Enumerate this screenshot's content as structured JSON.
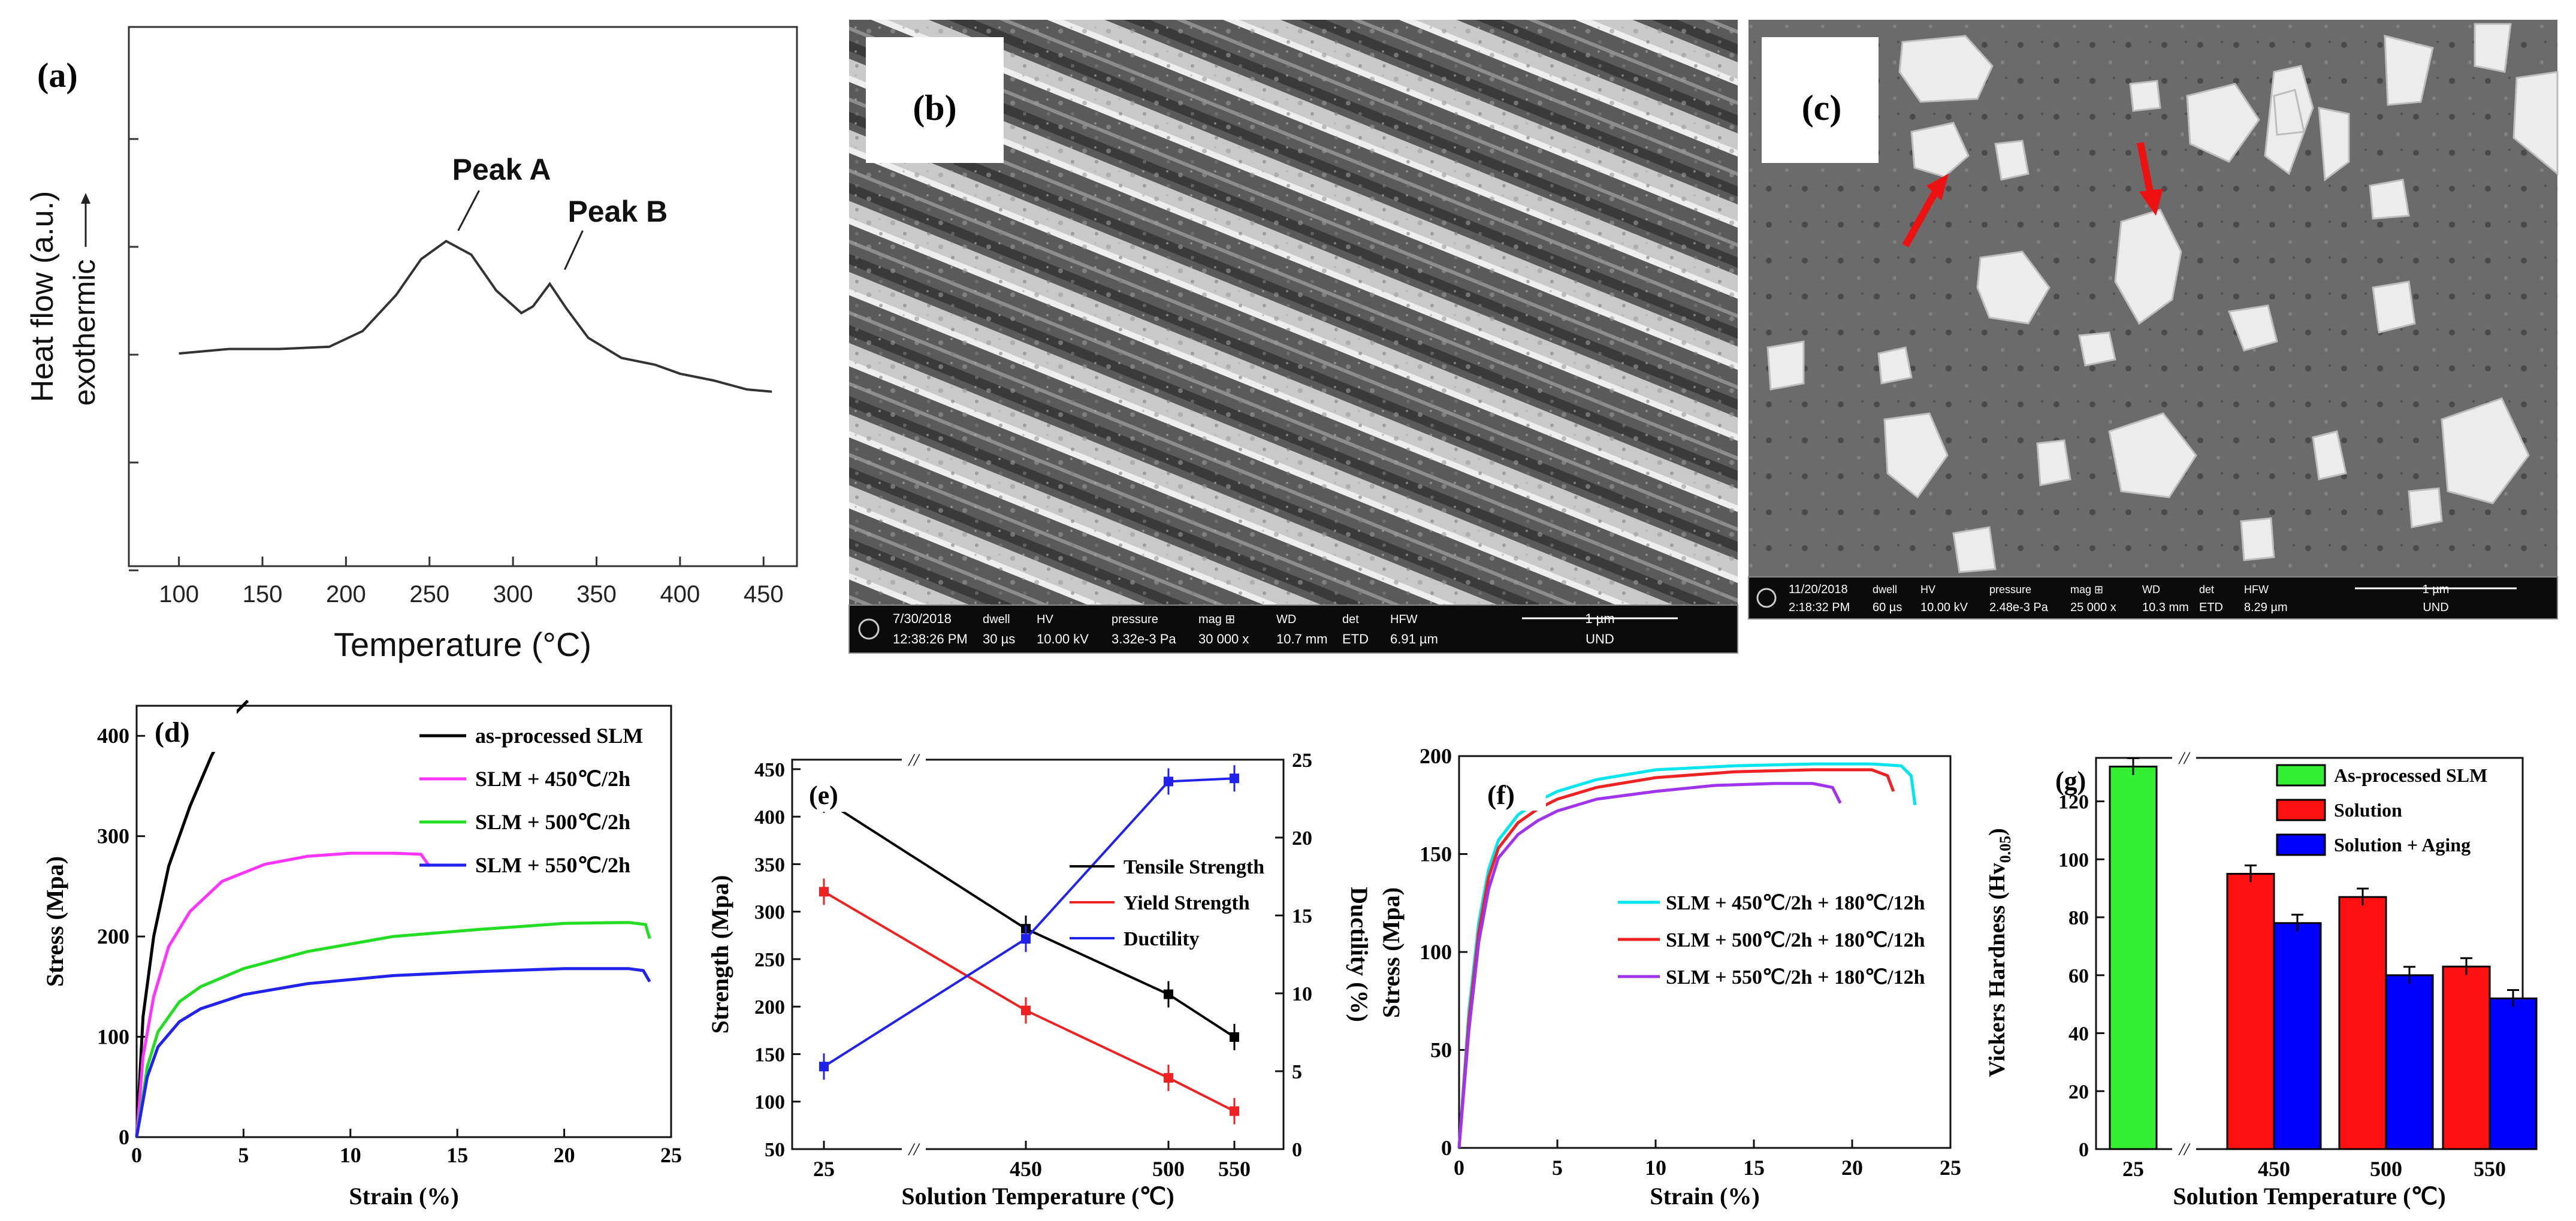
{
  "colors": {
    "black": "#000000",
    "magenta": "#ff33ff",
    "green": "#22dd22",
    "blue": "#2222ee",
    "red": "#ee2222",
    "cyan": "#00e5ee",
    "violet": "#a033ee",
    "bar_green": "#33ee33",
    "bar_red": "#ff1111",
    "bar_blue": "#0000ff"
  },
  "panels": {
    "a": "(a)",
    "b": "(b)",
    "c": "(c)",
    "d": "(d)",
    "e": "(e)",
    "f": "(f)",
    "g": "(g)"
  },
  "sem_b": {
    "date": "7/30/2018",
    "time": "12:38:26 PM",
    "dwell_h": "dwell",
    "dwell": "30 µs",
    "hv_h": "HV",
    "hv": "10.00 kV",
    "pressure_h": "pressure",
    "pressure": "3.32e-3 Pa",
    "mag_h": "mag ⊞",
    "mag": "30 000 x",
    "wd_h": "WD",
    "wd": "10.7 mm",
    "det_h": "det",
    "det": "ETD",
    "hfw_h": "HFW",
    "hfw": "6.91 µm",
    "scale": "1 µm",
    "mode": "UND"
  },
  "sem_c": {
    "date": "11/20/2018",
    "time": "2:18:32 PM",
    "dwell_h": "dwell",
    "dwell": "60 µs",
    "hv_h": "HV",
    "hv": "10.00 kV",
    "pressure_h": "pressure",
    "pressure": "2.48e-3 Pa",
    "mag_h": "mag ⊞",
    "mag": "25 000 x",
    "wd_h": "WD",
    "wd": "10.3 mm",
    "det_h": "det",
    "det": "ETD",
    "hfw_h": "HFW",
    "hfw": "8.29 µm",
    "scale": "1 µm",
    "mode": "UND"
  },
  "chart_data": [
    {
      "panel": "a",
      "type": "line",
      "xlabel": "Temperature (°C)",
      "ylabel": "Heat flow (a.u.)",
      "ylabel2": "exothermic",
      "xlim": [
        70,
        470
      ],
      "xticks": [
        100,
        150,
        200,
        250,
        300,
        350,
        400,
        450
      ],
      "yticks": 5,
      "annotations": [
        "Peak A",
        "Peak B"
      ],
      "peaks": [
        260,
        322
      ],
      "x": [
        100,
        130,
        160,
        190,
        210,
        230,
        245,
        260,
        275,
        290,
        305,
        312,
        322,
        332,
        345,
        365,
        385,
        400,
        420,
        440,
        455
      ],
      "y": [
        0.0,
        0.1,
        0.1,
        0.15,
        0.5,
        1.3,
        2.1,
        2.5,
        2.2,
        1.4,
        0.9,
        1.05,
        1.55,
        1.0,
        0.35,
        -0.1,
        -0.25,
        -0.45,
        -0.6,
        -0.8,
        -0.85
      ]
    },
    {
      "panel": "d",
      "type": "line",
      "xlabel": "Strain (%)",
      "ylabel": "Stress (Mpa)",
      "xlim": [
        0,
        25
      ],
      "ylim": [
        0,
        430
      ],
      "xticks": [
        0,
        5,
        10,
        15,
        20,
        25
      ],
      "yticks": [
        0,
        100,
        200,
        300,
        400
      ],
      "series": [
        {
          "name": "as-processed SLM",
          "x": [
            0,
            0.3,
            0.8,
            1.5,
            2.5,
            3.5,
            4.5,
            5.2
          ],
          "y": [
            0,
            120,
            200,
            270,
            330,
            380,
            420,
            435
          ]
        },
        {
          "name": "SLM + 450℃/2h",
          "x": [
            0,
            0.3,
            0.8,
            1.5,
            2.5,
            4,
            6,
            8,
            10,
            12,
            13.3,
            13.7
          ],
          "y": [
            0,
            80,
            140,
            190,
            225,
            255,
            272,
            280,
            283,
            283,
            282,
            270
          ]
        },
        {
          "name": "SLM + 500℃/2h",
          "x": [
            0,
            0.5,
            1,
            2,
            3,
            5,
            8,
            12,
            16,
            20,
            23,
            23.8,
            24
          ],
          "y": [
            0,
            70,
            105,
            135,
            150,
            168,
            185,
            200,
            207,
            213,
            214,
            212,
            198
          ]
        },
        {
          "name": "SLM + 550℃/2h",
          "x": [
            0,
            0.5,
            1,
            2,
            3,
            5,
            8,
            12,
            16,
            20,
            23,
            23.7,
            24
          ],
          "y": [
            0,
            60,
            90,
            115,
            128,
            142,
            153,
            161,
            165,
            168,
            168,
            166,
            155
          ]
        }
      ]
    },
    {
      "panel": "e",
      "type": "line",
      "xlabel": "Solution Temperature (℃)",
      "ylabel": "Strength (Mpa)",
      "ylabel2": "Ductility (%)",
      "categories": [
        "25",
        "450",
        "500",
        "550"
      ],
      "ylim": [
        50,
        460
      ],
      "y2lim": [
        0,
        25
      ],
      "yticks": [
        50,
        100,
        150,
        200,
        250,
        300,
        350,
        400,
        450
      ],
      "y2ticks": [
        0,
        5,
        10,
        15,
        20,
        25
      ],
      "series": [
        {
          "name": "Tensile Strength",
          "values": [
            418,
            282,
            213,
            168
          ]
        },
        {
          "name": "Yield Strength",
          "values": [
            321,
            196,
            125,
            90
          ]
        },
        {
          "name": "Ductility",
          "axis": "right",
          "values": [
            5.3,
            13.5,
            23.6,
            23.8
          ]
        }
      ]
    },
    {
      "panel": "f",
      "type": "line",
      "xlabel": "Strain (%)",
      "ylabel": "Stress (Mpa)",
      "xlim": [
        0,
        25
      ],
      "ylim": [
        0,
        200
      ],
      "xticks": [
        0,
        5,
        10,
        15,
        20,
        25
      ],
      "yticks": [
        0,
        50,
        100,
        150,
        200
      ],
      "series": [
        {
          "name": "SLM + 450℃/2h + 180℃/12h",
          "x": [
            0,
            0.5,
            1,
            1.5,
            2,
            3,
            4,
            5,
            7,
            10,
            14,
            18,
            21,
            22.5,
            23,
            23.2
          ],
          "y": [
            0,
            70,
            115,
            142,
            157,
            170,
            177,
            182,
            188,
            193,
            195,
            196,
            196,
            195,
            190,
            175
          ]
        },
        {
          "name": "SLM + 500℃/2h + 180℃/12h",
          "x": [
            0,
            0.5,
            1,
            1.5,
            2,
            3,
            4,
            5,
            7,
            10,
            14,
            18,
            21,
            21.8,
            22.1
          ],
          "y": [
            0,
            65,
            110,
            138,
            153,
            166,
            173,
            178,
            184,
            189,
            192,
            193,
            193,
            190,
            182
          ]
        },
        {
          "name": "SLM + 550℃/2h + 180℃/12h",
          "x": [
            0,
            0.5,
            1,
            1.5,
            2,
            3,
            4,
            5,
            7,
            10,
            13,
            16,
            18,
            19,
            19.4
          ],
          "y": [
            0,
            60,
            105,
            132,
            148,
            160,
            167,
            172,
            178,
            182,
            185,
            186,
            186,
            184,
            176
          ]
        }
      ]
    },
    {
      "panel": "g",
      "type": "bar",
      "xlabel": "Solution Temperature (℃)",
      "ylabel": "Vickers Hardness (Hv",
      "ylabel_sub": "0.05",
      "ylabel_end": ")",
      "categories": [
        "25",
        "450",
        "500",
        "550"
      ],
      "ylim": [
        0,
        135
      ],
      "yticks": [
        0,
        20,
        40,
        60,
        80,
        100,
        120
      ],
      "series": [
        {
          "name": "As-processed SLM",
          "values": [
            132,
            null,
            null,
            null
          ]
        },
        {
          "name": "Solution",
          "values": [
            null,
            95,
            87,
            63
          ]
        },
        {
          "name": "Solution + Aging",
          "values": [
            null,
            78,
            60,
            52
          ]
        }
      ]
    }
  ]
}
